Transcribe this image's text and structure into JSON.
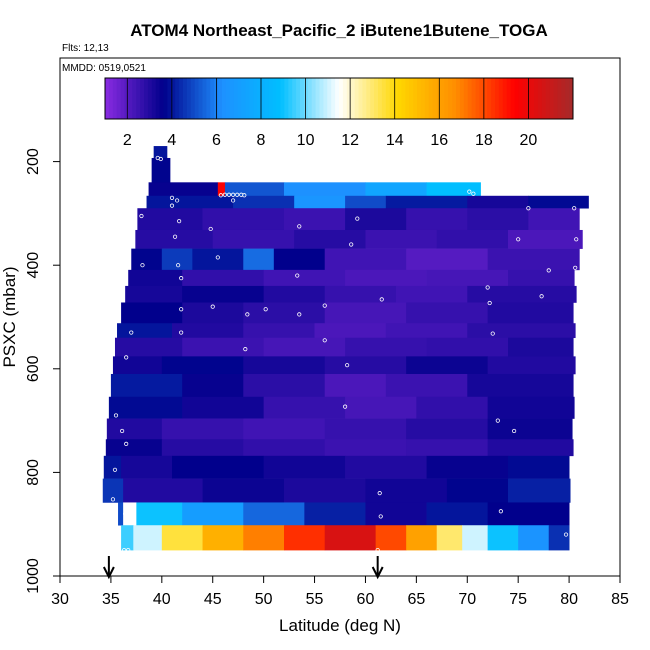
{
  "chart_data": {
    "type": "heatmap",
    "title": "ATOM4 Northeast_Pacific_2 iButene1Butene_TOGA",
    "subtitle_flights": "Flts: 12,13",
    "subtitle_dates": "MMDD: 0519,0521",
    "xlabel": "Latitude (deg N)",
    "ylabel": "PSXC (mbar)",
    "xlim": [
      30,
      85
    ],
    "ylim": [
      1000,
      0
    ],
    "x_ticks": [
      30,
      35,
      40,
      45,
      50,
      55,
      60,
      65,
      70,
      75,
      80,
      85
    ],
    "y_ticks": [
      200,
      400,
      600,
      800,
      1000
    ],
    "colorbar": {
      "range": [
        1,
        22
      ],
      "ticks": [
        2,
        4,
        6,
        8,
        10,
        12,
        14,
        16,
        18,
        20
      ],
      "colors": [
        "#8a2be2",
        "#00008b",
        "#1e90ff",
        "#00bfff",
        "#ffffff",
        "#ffd700",
        "#ff8c00",
        "#ff0000",
        "#a52a2a"
      ]
    },
    "arrow_latitudes": [
      34.8,
      61.2
    ],
    "rows": [
      {
        "p_top": 170,
        "p_bot": 193,
        "x0": 39.2,
        "x1": 40.5,
        "segments": [
          {
            "x0": 39.2,
            "x1": 40.5,
            "v": 4.0
          }
        ]
      },
      {
        "p_top": 193,
        "p_bot": 240,
        "x0": 39.0,
        "x1": 40.8,
        "segments": [
          {
            "x0": 39.0,
            "x1": 40.8,
            "v": 3.7
          }
        ]
      },
      {
        "p_top": 240,
        "p_bot": 266,
        "x0": 38.7,
        "x1": 71.3,
        "segments": [
          {
            "x0": 38.7,
            "x1": 45.5,
            "v": 3.5
          },
          {
            "x0": 45.5,
            "x1": 46.2,
            "v": 19.5
          },
          {
            "x0": 46.2,
            "x1": 52,
            "v": 5.2
          },
          {
            "x0": 52,
            "x1": 60,
            "v": 6.3
          },
          {
            "x0": 60,
            "x1": 66,
            "v": 7.4
          },
          {
            "x0": 66,
            "x1": 71.3,
            "v": 8.8
          }
        ]
      },
      {
        "p_top": 266,
        "p_bot": 290,
        "x0": 38.5,
        "x1": 81.9,
        "segments": [
          {
            "x0": 38.5,
            "x1": 47,
            "v": 4.0
          },
          {
            "x0": 47,
            "x1": 53,
            "v": 4.5
          },
          {
            "x0": 53,
            "x1": 58,
            "v": 6.6
          },
          {
            "x0": 58,
            "x1": 62,
            "v": 5.0
          },
          {
            "x0": 62,
            "x1": 70,
            "v": 4.1
          },
          {
            "x0": 70,
            "x1": 76,
            "v": 3.2
          },
          {
            "x0": 76,
            "x1": 81.9,
            "v": 3.8
          }
        ]
      },
      {
        "p_top": 290,
        "p_bot": 332,
        "x0": 37.6,
        "x1": 81.0,
        "segments": [
          {
            "x0": 37.6,
            "x1": 44,
            "v": 3.0
          },
          {
            "x0": 44,
            "x1": 52,
            "v": 2.7
          },
          {
            "x0": 52,
            "x1": 58,
            "v": 2.5
          },
          {
            "x0": 58,
            "x1": 64,
            "v": 3.1
          },
          {
            "x0": 64,
            "x1": 70,
            "v": 2.6
          },
          {
            "x0": 70,
            "x1": 76,
            "v": 2.8
          },
          {
            "x0": 76,
            "x1": 81,
            "v": 2.4
          }
        ]
      },
      {
        "p_top": 332,
        "p_bot": 368,
        "x0": 37.4,
        "x1": 81.3,
        "segments": [
          {
            "x0": 37.4,
            "x1": 45,
            "v": 2.9
          },
          {
            "x0": 45,
            "x1": 53,
            "v": 2.6
          },
          {
            "x0": 53,
            "x1": 60,
            "v": 2.9
          },
          {
            "x0": 60,
            "x1": 67,
            "v": 2.5
          },
          {
            "x0": 67,
            "x1": 74,
            "v": 2.7
          },
          {
            "x0": 74,
            "x1": 81.3,
            "v": 2.2
          }
        ]
      },
      {
        "p_top": 368,
        "p_bot": 409,
        "x0": 37.0,
        "x1": 81.0,
        "segments": [
          {
            "x0": 37,
            "x1": 40,
            "v": 3.7
          },
          {
            "x0": 40,
            "x1": 43,
            "v": 4.7
          },
          {
            "x0": 43,
            "x1": 48,
            "v": 4.0
          },
          {
            "x0": 48,
            "x1": 51,
            "v": 5.6
          },
          {
            "x0": 51,
            "x1": 56,
            "v": 3.6
          },
          {
            "x0": 56,
            "x1": 64,
            "v": 2.4
          },
          {
            "x0": 64,
            "x1": 72,
            "v": 2.0
          },
          {
            "x0": 72,
            "x1": 81,
            "v": 2.5
          }
        ]
      },
      {
        "p_top": 409,
        "p_bot": 440,
        "x0": 36.7,
        "x1": 80.5,
        "segments": [
          {
            "x0": 36.7,
            "x1": 42,
            "v": 3.3
          },
          {
            "x0": 42,
            "x1": 50,
            "v": 2.7
          },
          {
            "x0": 50,
            "x1": 58,
            "v": 2.4
          },
          {
            "x0": 58,
            "x1": 66,
            "v": 2.2
          },
          {
            "x0": 66,
            "x1": 74,
            "v": 2.3
          },
          {
            "x0": 74,
            "x1": 80.5,
            "v": 2.6
          }
        ]
      },
      {
        "p_top": 440,
        "p_bot": 472,
        "x0": 36.4,
        "x1": 80.7,
        "segments": [
          {
            "x0": 36.4,
            "x1": 42,
            "v": 3.2
          },
          {
            "x0": 42,
            "x1": 50,
            "v": 3.5
          },
          {
            "x0": 50,
            "x1": 56,
            "v": 3.0
          },
          {
            "x0": 56,
            "x1": 63,
            "v": 2.6
          },
          {
            "x0": 63,
            "x1": 70,
            "v": 2.4
          },
          {
            "x0": 70,
            "x1": 80.7,
            "v": 2.9
          }
        ]
      },
      {
        "p_top": 472,
        "p_bot": 512,
        "x0": 36.0,
        "x1": 80.4,
        "segments": [
          {
            "x0": 36,
            "x1": 42,
            "v": 3.6
          },
          {
            "x0": 42,
            "x1": 48,
            "v": 3.1
          },
          {
            "x0": 48,
            "x1": 56,
            "v": 2.8
          },
          {
            "x0": 56,
            "x1": 64,
            "v": 2.3
          },
          {
            "x0": 64,
            "x1": 72,
            "v": 2.6
          },
          {
            "x0": 72,
            "x1": 80.4,
            "v": 3.0
          }
        ]
      },
      {
        "p_top": 512,
        "p_bot": 540,
        "x0": 35.6,
        "x1": 80.6,
        "segments": [
          {
            "x0": 35.6,
            "x1": 41,
            "v": 4.0
          },
          {
            "x0": 41,
            "x1": 48,
            "v": 3.0
          },
          {
            "x0": 48,
            "x1": 55,
            "v": 2.6
          },
          {
            "x0": 55,
            "x1": 62,
            "v": 2.2
          },
          {
            "x0": 62,
            "x1": 70,
            "v": 2.4
          },
          {
            "x0": 70,
            "x1": 80.6,
            "v": 2.8
          }
        ]
      },
      {
        "p_top": 540,
        "p_bot": 576,
        "x0": 35.4,
        "x1": 80.4,
        "segments": [
          {
            "x0": 35.4,
            "x1": 42,
            "v": 2.9
          },
          {
            "x0": 42,
            "x1": 50,
            "v": 2.5
          },
          {
            "x0": 50,
            "x1": 58,
            "v": 2.3
          },
          {
            "x0": 58,
            "x1": 66,
            "v": 2.6
          },
          {
            "x0": 66,
            "x1": 74,
            "v": 2.7
          },
          {
            "x0": 74,
            "x1": 80.4,
            "v": 3.1
          }
        ]
      },
      {
        "p_top": 576,
        "p_bot": 610,
        "x0": 35.2,
        "x1": 80.6,
        "segments": [
          {
            "x0": 35.2,
            "x1": 40,
            "v": 3.3
          },
          {
            "x0": 40,
            "x1": 48,
            "v": 3.7
          },
          {
            "x0": 48,
            "x1": 56,
            "v": 3.2
          },
          {
            "x0": 56,
            "x1": 64,
            "v": 2.9
          },
          {
            "x0": 64,
            "x1": 72,
            "v": 3.4
          },
          {
            "x0": 72,
            "x1": 80.6,
            "v": 3.0
          }
        ]
      },
      {
        "p_top": 610,
        "p_bot": 654,
        "x0": 35.0,
        "x1": 80.4,
        "segments": [
          {
            "x0": 35,
            "x1": 42,
            "v": 4.1
          },
          {
            "x0": 42,
            "x1": 48,
            "v": 3.5
          },
          {
            "x0": 48,
            "x1": 56,
            "v": 2.8
          },
          {
            "x0": 56,
            "x1": 62,
            "v": 2.2
          },
          {
            "x0": 62,
            "x1": 70,
            "v": 2.5
          },
          {
            "x0": 70,
            "x1": 80.4,
            "v": 3.2
          }
        ]
      },
      {
        "p_top": 654,
        "p_bot": 696,
        "x0": 34.8,
        "x1": 80.5,
        "segments": [
          {
            "x0": 34.8,
            "x1": 42,
            "v": 3.8
          },
          {
            "x0": 42,
            "x1": 50,
            "v": 3.3
          },
          {
            "x0": 50,
            "x1": 58,
            "v": 2.6
          },
          {
            "x0": 58,
            "x1": 65,
            "v": 2.3
          },
          {
            "x0": 65,
            "x1": 72,
            "v": 2.7
          },
          {
            "x0": 72,
            "x1": 80.5,
            "v": 3.3
          }
        ]
      },
      {
        "p_top": 696,
        "p_bot": 736,
        "x0": 34.6,
        "x1": 80.3,
        "segments": [
          {
            "x0": 34.6,
            "x1": 40,
            "v": 3.0
          },
          {
            "x0": 40,
            "x1": 48,
            "v": 2.6
          },
          {
            "x0": 48,
            "x1": 56,
            "v": 2.4
          },
          {
            "x0": 56,
            "x1": 64,
            "v": 2.6
          },
          {
            "x0": 64,
            "x1": 72,
            "v": 2.9
          },
          {
            "x0": 72,
            "x1": 80.3,
            "v": 3.4
          }
        ]
      },
      {
        "p_top": 736,
        "p_bot": 768,
        "x0": 34.5,
        "x1": 80.4,
        "segments": [
          {
            "x0": 34.5,
            "x1": 40,
            "v": 3.5
          },
          {
            "x0": 40,
            "x1": 48,
            "v": 2.9
          },
          {
            "x0": 48,
            "x1": 56,
            "v": 2.7
          },
          {
            "x0": 56,
            "x1": 64,
            "v": 2.5
          },
          {
            "x0": 64,
            "x1": 72,
            "v": 2.6
          },
          {
            "x0": 72,
            "x1": 80.4,
            "v": 3.0
          }
        ]
      },
      {
        "p_top": 768,
        "p_bot": 812,
        "x0": 34.3,
        "x1": 80.0,
        "segments": [
          {
            "x0": 34.3,
            "x1": 36,
            "v": 4.0
          },
          {
            "x0": 36,
            "x1": 41,
            "v": 3.2
          },
          {
            "x0": 41,
            "x1": 50,
            "v": 3.6
          },
          {
            "x0": 50,
            "x1": 58,
            "v": 3.3
          },
          {
            "x0": 58,
            "x1": 66,
            "v": 3.0
          },
          {
            "x0": 66,
            "x1": 74,
            "v": 3.5
          },
          {
            "x0": 74,
            "x1": 80,
            "v": 3.8
          }
        ]
      },
      {
        "p_top": 812,
        "p_bot": 858,
        "x0": 34.2,
        "x1": 80.1,
        "segments": [
          {
            "x0": 34.2,
            "x1": 36.2,
            "v": 4.6
          },
          {
            "x0": 36.2,
            "x1": 44,
            "v": 3.0
          },
          {
            "x0": 44,
            "x1": 52,
            "v": 3.4
          },
          {
            "x0": 52,
            "x1": 60,
            "v": 3.1
          },
          {
            "x0": 60,
            "x1": 68,
            "v": 3.3
          },
          {
            "x0": 68,
            "x1": 74,
            "v": 3.7
          },
          {
            "x0": 74,
            "x1": 80.1,
            "v": 4.2
          }
        ]
      },
      {
        "p_top": 858,
        "p_bot": 902,
        "x0": 35.7,
        "x1": 80.0,
        "segments": [
          {
            "x0": 35.7,
            "x1": 36.2,
            "v": 5.0
          },
          {
            "x0": 36.2,
            "x1": 37.5,
            "v": 11.5
          },
          {
            "x0": 37.5,
            "x1": 42,
            "v": 9.0
          },
          {
            "x0": 42,
            "x1": 48,
            "v": 7.0
          },
          {
            "x0": 48,
            "x1": 54,
            "v": 5.5
          },
          {
            "x0": 54,
            "x1": 60,
            "v": 4.2
          },
          {
            "x0": 60,
            "x1": 66,
            "v": 3.3
          },
          {
            "x0": 66,
            "x1": 72,
            "v": 4.0
          },
          {
            "x0": 72,
            "x1": 80,
            "v": 3.6
          }
        ]
      },
      {
        "p_top": 902,
        "p_bot": 950,
        "x0": 36.0,
        "x1": 80.0,
        "segments": [
          {
            "x0": 36,
            "x1": 37.2,
            "v": 9.5
          },
          {
            "x0": 37.2,
            "x1": 40,
            "v": 11.0
          },
          {
            "x0": 40,
            "x1": 44,
            "v": 13.5
          },
          {
            "x0": 44,
            "x1": 48,
            "v": 15.5
          },
          {
            "x0": 48,
            "x1": 52,
            "v": 17.0
          },
          {
            "x0": 52,
            "x1": 56,
            "v": 18.5
          },
          {
            "x0": 56,
            "x1": 61,
            "v": 20.5
          },
          {
            "x0": 61,
            "x1": 64,
            "v": 18.0
          },
          {
            "x0": 64,
            "x1": 67,
            "v": 16.0
          },
          {
            "x0": 67,
            "x1": 69.5,
            "v": 13.0
          },
          {
            "x0": 69.5,
            "x1": 72,
            "v": 11.0
          },
          {
            "x0": 72,
            "x1": 75,
            "v": 9.0
          },
          {
            "x0": 75,
            "x1": 78,
            "v": 6.5
          },
          {
            "x0": 78,
            "x1": 80,
            "v": 4.5
          }
        ]
      }
    ],
    "points": [
      {
        "lat": 39.6,
        "p": 193
      },
      {
        "lat": 39.9,
        "p": 195
      },
      {
        "lat": 45.8,
        "p": 265
      },
      {
        "lat": 46.2,
        "p": 264
      },
      {
        "lat": 46.6,
        "p": 264
      },
      {
        "lat": 47.0,
        "p": 264
      },
      {
        "lat": 47.4,
        "p": 264
      },
      {
        "lat": 47.8,
        "p": 264
      },
      {
        "lat": 48.1,
        "p": 265
      },
      {
        "lat": 41.0,
        "p": 270
      },
      {
        "lat": 41.5,
        "p": 275
      },
      {
        "lat": 41.0,
        "p": 285
      },
      {
        "lat": 47.0,
        "p": 275
      },
      {
        "lat": 70.2,
        "p": 258
      },
      {
        "lat": 70.6,
        "p": 262
      },
      {
        "lat": 76.0,
        "p": 290
      },
      {
        "lat": 80.5,
        "p": 290
      },
      {
        "lat": 38.0,
        "p": 305
      },
      {
        "lat": 41.7,
        "p": 315
      },
      {
        "lat": 41.3,
        "p": 345
      },
      {
        "lat": 44.8,
        "p": 330
      },
      {
        "lat": 53.5,
        "p": 325
      },
      {
        "lat": 59.2,
        "p": 310
      },
      {
        "lat": 75.0,
        "p": 350
      },
      {
        "lat": 80.7,
        "p": 350
      },
      {
        "lat": 38.1,
        "p": 400
      },
      {
        "lat": 41.6,
        "p": 400
      },
      {
        "lat": 45.5,
        "p": 385
      },
      {
        "lat": 58.6,
        "p": 360
      },
      {
        "lat": 41.9,
        "p": 425
      },
      {
        "lat": 53.3,
        "p": 420
      },
      {
        "lat": 78.0,
        "p": 410
      },
      {
        "lat": 80.6,
        "p": 405
      },
      {
        "lat": 41.9,
        "p": 485
      },
      {
        "lat": 45.0,
        "p": 480
      },
      {
        "lat": 48.4,
        "p": 495
      },
      {
        "lat": 50.2,
        "p": 485
      },
      {
        "lat": 53.5,
        "p": 495
      },
      {
        "lat": 56.0,
        "p": 478
      },
      {
        "lat": 61.6,
        "p": 466
      },
      {
        "lat": 72.0,
        "p": 443
      },
      {
        "lat": 72.2,
        "p": 473
      },
      {
        "lat": 77.3,
        "p": 460
      },
      {
        "lat": 37.0,
        "p": 530
      },
      {
        "lat": 41.9,
        "p": 530
      },
      {
        "lat": 48.2,
        "p": 562
      },
      {
        "lat": 56.0,
        "p": 545
      },
      {
        "lat": 72.5,
        "p": 532
      },
      {
        "lat": 36.5,
        "p": 578
      },
      {
        "lat": 58.2,
        "p": 593
      },
      {
        "lat": 58.0,
        "p": 673
      },
      {
        "lat": 73.0,
        "p": 700
      },
      {
        "lat": 74.6,
        "p": 720
      },
      {
        "lat": 35.5,
        "p": 690
      },
      {
        "lat": 36.1,
        "p": 720
      },
      {
        "lat": 36.5,
        "p": 745
      },
      {
        "lat": 35.4,
        "p": 795
      },
      {
        "lat": 35.2,
        "p": 852
      },
      {
        "lat": 61.4,
        "p": 840
      },
      {
        "lat": 36.4,
        "p": 880
      },
      {
        "lat": 61.5,
        "p": 885
      },
      {
        "lat": 73.3,
        "p": 875
      },
      {
        "lat": 79.7,
        "p": 920
      },
      {
        "lat": 36.3,
        "p": 950
      },
      {
        "lat": 36.7,
        "p": 950
      },
      {
        "lat": 61.2,
        "p": 950
      }
    ]
  }
}
